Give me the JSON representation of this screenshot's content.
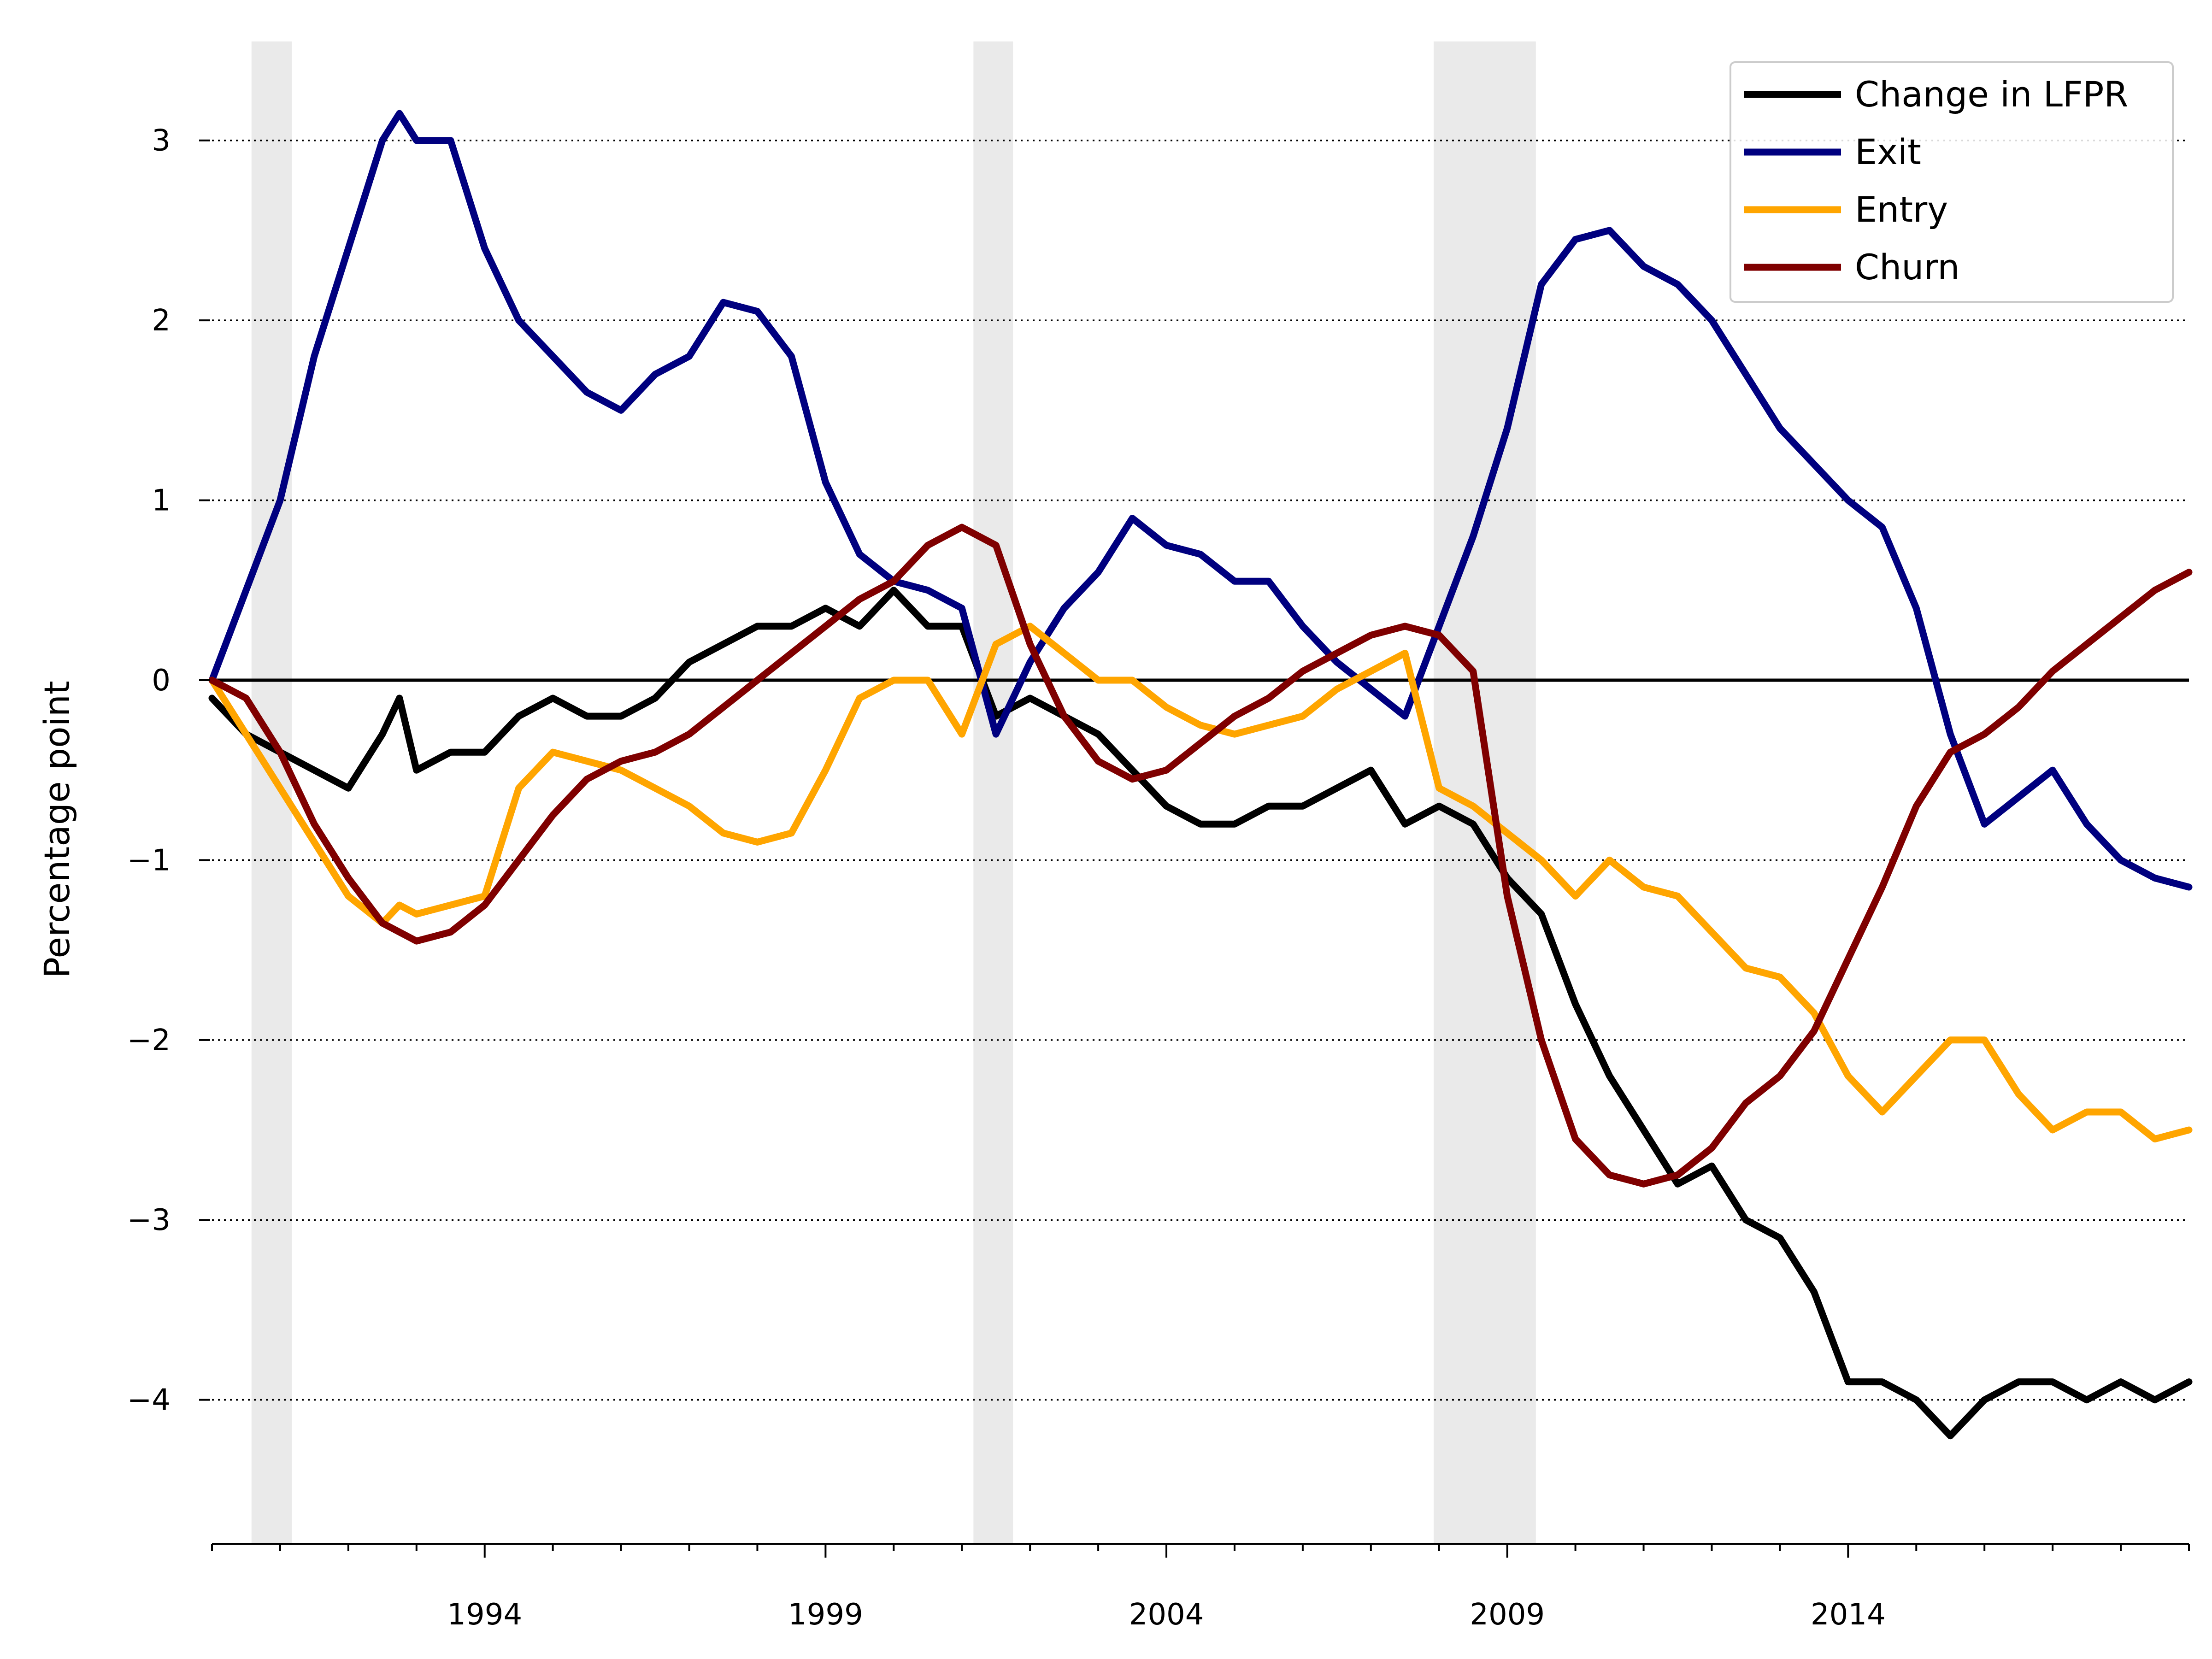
{
  "chart_data": {
    "type": "line",
    "title": "",
    "xlabel": "",
    "ylabel": "Percentage point",
    "xlim": [
      1990.0,
      2019.0
    ],
    "ylim": [
      -4.8,
      3.55
    ],
    "x_ticks": [
      1994,
      1999,
      2004,
      2009,
      2014
    ],
    "x_tick_labels": [
      "1994",
      "1999",
      "2004",
      "2009",
      "2014"
    ],
    "y_ticks": [
      3,
      2,
      1,
      0,
      -1,
      -2,
      -3,
      -4
    ],
    "y_tick_labels": [
      "3",
      "2",
      "1",
      "0",
      "−1",
      "−2",
      "−3",
      "−4"
    ],
    "grid": "horizontal dotted",
    "zero_line": true,
    "legend_position": "top-right",
    "recession_shading": [
      [
        1990.58,
        1991.17
      ],
      [
        2001.17,
        2001.75
      ],
      [
        2007.92,
        2009.42
      ]
    ],
    "series": [
      {
        "name": "Change in LFPR",
        "color": "#000000",
        "x": [
          1990.0,
          1990.5,
          1991.0,
          1991.5,
          1992.0,
          1992.5,
          1992.75,
          1993.0,
          1993.5,
          1994.0,
          1994.5,
          1995.0,
          1995.5,
          1996.0,
          1996.5,
          1997.0,
          1997.5,
          1998.0,
          1998.5,
          1999.0,
          1999.5,
          2000.0,
          2000.5,
          2001.0,
          2001.5,
          2002.0,
          2002.5,
          2003.0,
          2003.5,
          2004.0,
          2004.5,
          2005.0,
          2005.5,
          2006.0,
          2006.5,
          2007.0,
          2007.5,
          2008.0,
          2008.5,
          2009.0,
          2009.5,
          2010.0,
          2010.5,
          2011.0,
          2011.5,
          2012.0,
          2012.5,
          2013.0,
          2013.5,
          2014.0,
          2014.5,
          2015.0,
          2015.5,
          2016.0,
          2016.5,
          2017.0,
          2017.5,
          2018.0,
          2018.5,
          2019.0
        ],
        "values": [
          -0.1,
          -0.3,
          -0.4,
          -0.5,
          -0.6,
          -0.3,
          -0.1,
          -0.5,
          -0.4,
          -0.4,
          -0.2,
          -0.1,
          -0.2,
          -0.2,
          -0.1,
          0.1,
          0.2,
          0.3,
          0.3,
          0.4,
          0.3,
          0.5,
          0.3,
          0.3,
          -0.2,
          -0.1,
          -0.2,
          -0.3,
          -0.5,
          -0.7,
          -0.8,
          -0.8,
          -0.7,
          -0.7,
          -0.6,
          -0.5,
          -0.8,
          -0.7,
          -0.8,
          -1.1,
          -1.3,
          -1.8,
          -2.2,
          -2.5,
          -2.8,
          -2.7,
          -3.0,
          -3.1,
          -3.4,
          -3.9,
          -3.9,
          -4.0,
          -4.2,
          -4.0,
          -3.9,
          -3.9,
          -4.0,
          -3.9,
          -4.0,
          -3.9
        ]
      },
      {
        "name": "Exit",
        "color": "#00007f",
        "x": [
          1990.0,
          1990.5,
          1991.0,
          1991.5,
          1992.0,
          1992.5,
          1992.75,
          1993.0,
          1993.5,
          1994.0,
          1994.5,
          1995.0,
          1995.5,
          1996.0,
          1996.5,
          1997.0,
          1997.5,
          1998.0,
          1998.5,
          1999.0,
          1999.5,
          2000.0,
          2000.5,
          2001.0,
          2001.5,
          2002.0,
          2002.5,
          2003.0,
          2003.5,
          2004.0,
          2004.5,
          2005.0,
          2005.5,
          2006.0,
          2006.5,
          2007.0,
          2007.5,
          2008.0,
          2008.5,
          2009.0,
          2009.5,
          2010.0,
          2010.5,
          2011.0,
          2011.5,
          2012.0,
          2012.5,
          2013.0,
          2013.5,
          2014.0,
          2014.5,
          2015.0,
          2015.5,
          2016.0,
          2016.5,
          2017.0,
          2017.5,
          2018.0,
          2018.5,
          2019.0
        ],
        "values": [
          0.0,
          0.5,
          1.0,
          1.8,
          2.4,
          3.0,
          3.15,
          3.0,
          3.0,
          2.4,
          2.0,
          1.8,
          1.6,
          1.5,
          1.7,
          1.8,
          2.1,
          2.05,
          1.8,
          1.1,
          0.7,
          0.55,
          0.5,
          0.4,
          -0.3,
          0.1,
          0.4,
          0.6,
          0.9,
          0.75,
          0.7,
          0.55,
          0.55,
          0.3,
          0.1,
          -0.05,
          -0.2,
          0.3,
          0.8,
          1.4,
          2.2,
          2.45,
          2.5,
          2.3,
          2.2,
          2.0,
          1.7,
          1.4,
          1.2,
          1.0,
          0.85,
          0.4,
          -0.3,
          -0.8,
          -0.65,
          -0.5,
          -0.8,
          -1.0,
          -1.1,
          -1.15
        ]
      },
      {
        "name": "Entry",
        "color": "#ffa500",
        "x": [
          1990.0,
          1990.5,
          1991.0,
          1991.5,
          1992.0,
          1992.5,
          1992.75,
          1993.0,
          1993.5,
          1994.0,
          1994.5,
          1995.0,
          1995.5,
          1996.0,
          1996.5,
          1997.0,
          1997.5,
          1998.0,
          1998.5,
          1999.0,
          1999.5,
          2000.0,
          2000.5,
          2001.0,
          2001.5,
          2002.0,
          2002.5,
          2003.0,
          2003.5,
          2004.0,
          2004.5,
          2005.0,
          2005.5,
          2006.0,
          2006.5,
          2007.0,
          2007.5,
          2008.0,
          2008.5,
          2009.0,
          2009.5,
          2010.0,
          2010.5,
          2011.0,
          2011.5,
          2012.0,
          2012.5,
          2013.0,
          2013.5,
          2014.0,
          2014.5,
          2015.0,
          2015.5,
          2016.0,
          2016.5,
          2017.0,
          2017.5,
          2018.0,
          2018.5,
          2019.0
        ],
        "values": [
          0.0,
          -0.3,
          -0.6,
          -0.9,
          -1.2,
          -1.35,
          -1.25,
          -1.3,
          -1.25,
          -1.2,
          -0.6,
          -0.4,
          -0.45,
          -0.5,
          -0.6,
          -0.7,
          -0.85,
          -0.9,
          -0.85,
          -0.5,
          -0.1,
          0.0,
          0.0,
          -0.3,
          0.2,
          0.3,
          0.15,
          0.0,
          0.0,
          -0.15,
          -0.25,
          -0.3,
          -0.25,
          -0.2,
          -0.05,
          0.05,
          0.15,
          -0.6,
          -0.7,
          -0.85,
          -1.0,
          -1.2,
          -1.0,
          -1.15,
          -1.2,
          -1.4,
          -1.6,
          -1.65,
          -1.85,
          -2.2,
          -2.4,
          -2.2,
          -2.0,
          -2.0,
          -2.3,
          -2.5,
          -2.4,
          -2.4,
          -2.55,
          -2.5
        ]
      },
      {
        "name": "Churn",
        "color": "#7f0000",
        "x": [
          1990.0,
          1990.5,
          1991.0,
          1991.5,
          1992.0,
          1992.5,
          1993.0,
          1993.5,
          1994.0,
          1994.5,
          1995.0,
          1995.5,
          1996.0,
          1996.5,
          1997.0,
          1997.5,
          1998.0,
          1998.5,
          1999.0,
          1999.5,
          2000.0,
          2000.5,
          2001.0,
          2001.5,
          2002.0,
          2002.5,
          2003.0,
          2003.5,
          2004.0,
          2004.5,
          2005.0,
          2005.5,
          2006.0,
          2006.5,
          2007.0,
          2007.5,
          2008.0,
          2008.5,
          2009.0,
          2009.5,
          2010.0,
          2010.5,
          2011.0,
          2011.5,
          2012.0,
          2012.5,
          2013.0,
          2013.5,
          2014.0,
          2014.5,
          2015.0,
          2015.5,
          2016.0,
          2016.5,
          2017.0,
          2017.5,
          2018.0,
          2018.5,
          2019.0
        ],
        "values": [
          0.0,
          -0.1,
          -0.4,
          -0.8,
          -1.1,
          -1.35,
          -1.45,
          -1.4,
          -1.25,
          -1.0,
          -0.75,
          -0.55,
          -0.45,
          -0.4,
          -0.3,
          -0.15,
          0.0,
          0.15,
          0.3,
          0.45,
          0.55,
          0.75,
          0.85,
          0.75,
          0.2,
          -0.2,
          -0.45,
          -0.55,
          -0.5,
          -0.35,
          -0.2,
          -0.1,
          0.05,
          0.15,
          0.25,
          0.3,
          0.25,
          0.05,
          -1.2,
          -2.0,
          -2.55,
          -2.75,
          -2.8,
          -2.75,
          -2.6,
          -2.35,
          -2.2,
          -1.95,
          -1.55,
          -1.15,
          -0.7,
          -0.4,
          -0.3,
          -0.15,
          0.05,
          0.2,
          0.35,
          0.5,
          0.6
        ]
      }
    ]
  }
}
